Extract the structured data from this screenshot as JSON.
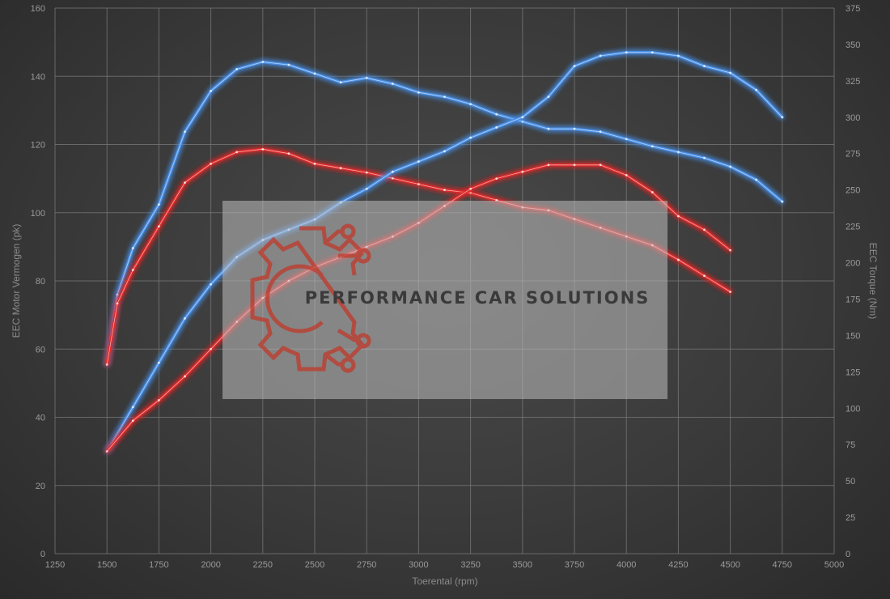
{
  "chart_data": {
    "type": "line",
    "title": "",
    "xlabel": "Toerental (rpm)",
    "ylabel_left": "EEC Motor Vermogen (pk)",
    "ylabel_right": "EEC Torque (Nm)",
    "xlim": [
      1250,
      5000
    ],
    "ylim_left": [
      0,
      160
    ],
    "ylim_right": [
      0,
      375
    ],
    "x_ticks": [
      "1250",
      "1500",
      "1750",
      "2000",
      "2250",
      "2500",
      "2750",
      "3000",
      "3250",
      "3500",
      "3750",
      "4000",
      "4250",
      "4500",
      "4750",
      "5000"
    ],
    "y_ticks_left": [
      "0",
      "20",
      "40",
      "60",
      "80",
      "100",
      "120",
      "140",
      "160"
    ],
    "y_ticks_right": [
      "0",
      "25",
      "50",
      "75",
      "100",
      "125",
      "150",
      "175",
      "200",
      "225",
      "250",
      "275",
      "300",
      "325",
      "350",
      "375"
    ],
    "grid": true,
    "legend": "none",
    "series": [
      {
        "axis": "right",
        "color": "#4a90e8",
        "points": [
          [
            1500,
            130
          ],
          [
            1550,
            178
          ],
          [
            1625,
            210
          ],
          [
            1750,
            240
          ],
          [
            1875,
            290
          ],
          [
            2000,
            318
          ],
          [
            2125,
            333
          ],
          [
            2250,
            338
          ],
          [
            2375,
            336
          ],
          [
            2500,
            330
          ],
          [
            2625,
            324
          ],
          [
            2750,
            327
          ],
          [
            2875,
            323
          ],
          [
            3000,
            317
          ],
          [
            3125,
            314
          ],
          [
            3250,
            309
          ],
          [
            3375,
            302
          ],
          [
            3500,
            297
          ],
          [
            3625,
            292
          ],
          [
            3750,
            292
          ],
          [
            3875,
            290
          ],
          [
            4000,
            285
          ],
          [
            4125,
            280
          ],
          [
            4250,
            276
          ],
          [
            4375,
            272
          ],
          [
            4500,
            266
          ],
          [
            4625,
            257
          ],
          [
            4750,
            242
          ]
        ]
      },
      {
        "axis": "right",
        "color": "#e02a2a",
        "points": [
          [
            1500,
            130
          ],
          [
            1550,
            172
          ],
          [
            1625,
            195
          ],
          [
            1750,
            225
          ],
          [
            1875,
            255
          ],
          [
            2000,
            268
          ],
          [
            2125,
            276
          ],
          [
            2250,
            278
          ],
          [
            2375,
            275
          ],
          [
            2500,
            268
          ],
          [
            2625,
            265
          ],
          [
            2750,
            262
          ],
          [
            2875,
            258
          ],
          [
            3000,
            254
          ],
          [
            3125,
            250
          ],
          [
            3250,
            248
          ],
          [
            3375,
            243
          ],
          [
            3500,
            238
          ],
          [
            3625,
            236
          ],
          [
            3750,
            230
          ],
          [
            3875,
            224
          ],
          [
            4000,
            218
          ],
          [
            4125,
            212
          ],
          [
            4250,
            202
          ],
          [
            4375,
            191
          ],
          [
            4500,
            180
          ]
        ]
      },
      {
        "axis": "left",
        "color": "#4a90e8",
        "points": [
          [
            1500,
            30
          ],
          [
            1625,
            43
          ],
          [
            1750,
            56
          ],
          [
            1875,
            69
          ],
          [
            2000,
            79
          ],
          [
            2125,
            87
          ],
          [
            2250,
            92
          ],
          [
            2375,
            95
          ],
          [
            2500,
            98
          ],
          [
            2625,
            103
          ],
          [
            2750,
            107
          ],
          [
            2875,
            112
          ],
          [
            3000,
            115
          ],
          [
            3125,
            118
          ],
          [
            3250,
            122
          ],
          [
            3375,
            125
          ],
          [
            3500,
            128
          ],
          [
            3625,
            134
          ],
          [
            3750,
            143
          ],
          [
            3875,
            146
          ],
          [
            4000,
            147
          ],
          [
            4125,
            147
          ],
          [
            4250,
            146
          ],
          [
            4375,
            143
          ],
          [
            4500,
            141
          ],
          [
            4625,
            136
          ],
          [
            4750,
            128
          ]
        ]
      },
      {
        "axis": "left",
        "color": "#e02a2a",
        "points": [
          [
            1500,
            30
          ],
          [
            1625,
            39
          ],
          [
            1750,
            45
          ],
          [
            1875,
            52
          ],
          [
            2000,
            60
          ],
          [
            2125,
            68
          ],
          [
            2250,
            75
          ],
          [
            2375,
            80
          ],
          [
            2500,
            84
          ],
          [
            2625,
            87
          ],
          [
            2750,
            90
          ],
          [
            2875,
            93
          ],
          [
            3000,
            97
          ],
          [
            3125,
            102
          ],
          [
            3250,
            107
          ],
          [
            3375,
            110
          ],
          [
            3500,
            112
          ],
          [
            3625,
            114
          ],
          [
            3750,
            114
          ],
          [
            3875,
            114
          ],
          [
            4000,
            111
          ],
          [
            4125,
            106
          ],
          [
            4250,
            99
          ],
          [
            4375,
            95
          ],
          [
            4500,
            89
          ]
        ]
      }
    ]
  },
  "watermark": {
    "text": "PERFORMANCE CAR SOLUTIONS",
    "text_color": "#3a3a3a",
    "logo_color": "#c0392b",
    "panel_color": "#bdbdbd",
    "logo_icon": "gear-circuit-icon"
  }
}
